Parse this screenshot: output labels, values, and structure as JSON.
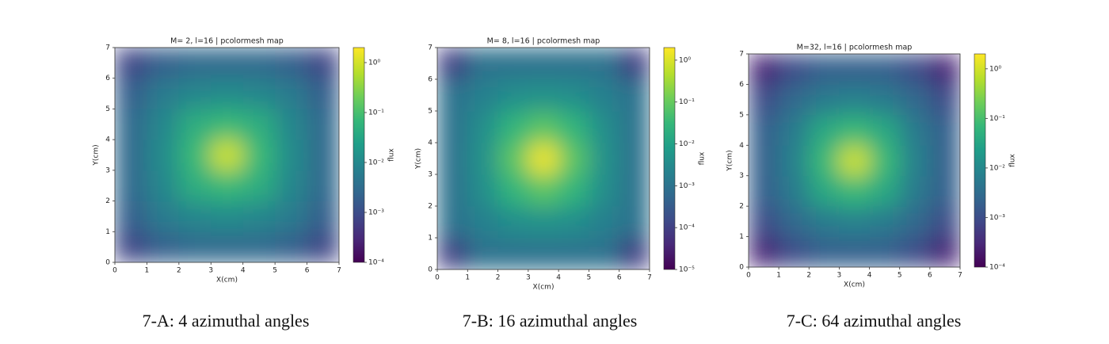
{
  "chart_data": [
    {
      "type": "heatmap",
      "title": "M= 2, l=16 | pcolormesh map",
      "xlabel": "X(cm)",
      "ylabel": "Y(cm)",
      "colorbar_label": "flux",
      "caption": "7-A: 4 azimuthal angles",
      "cmap": "viridis",
      "color_scale": "log",
      "xlim": [
        0,
        7
      ],
      "ylim": [
        0,
        7
      ],
      "xticks": [
        0,
        1,
        2,
        3,
        4,
        5,
        6,
        7
      ],
      "yticks": [
        0,
        1,
        2,
        3,
        4,
        5,
        6,
        7
      ],
      "clim": [
        0.0001,
        2
      ],
      "cticks": [
        {
          "value": 1,
          "label": "10⁰"
        },
        {
          "value": 0.1,
          "label": "10⁻¹"
        },
        {
          "value": 0.01,
          "label": "10⁻²"
        },
        {
          "value": 0.001,
          "label": "10⁻³"
        },
        {
          "value": 0.0001,
          "label": "10⁻⁴"
        }
      ],
      "z": [
        [
          0.0008,
          0.002,
          0.003,
          0.003,
          0.003,
          0.002,
          0.0008
        ],
        [
          0.002,
          0.006,
          0.01,
          0.012,
          0.01,
          0.006,
          0.002
        ],
        [
          0.003,
          0.01,
          0.05,
          0.08,
          0.05,
          0.01,
          0.003
        ],
        [
          0.003,
          0.012,
          0.08,
          1,
          0.08,
          0.012,
          0.003
        ],
        [
          0.003,
          0.01,
          0.05,
          0.08,
          0.05,
          0.01,
          0.003
        ],
        [
          0.002,
          0.006,
          0.01,
          0.012,
          0.01,
          0.006,
          0.002
        ],
        [
          0.0008,
          0.002,
          0.003,
          0.003,
          0.003,
          0.002,
          0.0008
        ]
      ]
    },
    {
      "type": "heatmap",
      "title": "M= 8, l=16 | pcolormesh map",
      "xlabel": "X(cm)",
      "ylabel": "Y(cm)",
      "colorbar_label": "flux",
      "caption": "7-B: 16 azimuthal angles",
      "cmap": "viridis",
      "color_scale": "log",
      "xlim": [
        0,
        7
      ],
      "ylim": [
        0,
        7
      ],
      "xticks": [
        0,
        1,
        2,
        3,
        4,
        5,
        6,
        7
      ],
      "yticks": [
        0,
        1,
        2,
        3,
        4,
        5,
        6,
        7
      ],
      "clim": [
        1e-05,
        2
      ],
      "cticks": [
        {
          "value": 1,
          "label": "10⁰"
        },
        {
          "value": 0.1,
          "label": "10⁻¹"
        },
        {
          "value": 0.01,
          "label": "10⁻²"
        },
        {
          "value": 0.001,
          "label": "10⁻³"
        },
        {
          "value": 0.0001,
          "label": "10⁻⁴"
        },
        {
          "value": 1e-05,
          "label": "10⁻⁵"
        }
      ],
      "z": [
        [
          0.0001,
          0.001,
          0.001,
          0.001,
          0.001,
          0.001,
          0.0001
        ],
        [
          0.001,
          0.002,
          0.004,
          0.005,
          0.004,
          0.002,
          0.001
        ],
        [
          0.001,
          0.004,
          0.03,
          0.08,
          0.03,
          0.004,
          0.001
        ],
        [
          0.001,
          0.005,
          0.08,
          1.5,
          0.08,
          0.005,
          0.001
        ],
        [
          0.001,
          0.004,
          0.03,
          0.08,
          0.03,
          0.004,
          0.001
        ],
        [
          0.001,
          0.002,
          0.004,
          0.005,
          0.004,
          0.002,
          0.001
        ],
        [
          0.0001,
          0.001,
          0.001,
          0.001,
          0.001,
          0.001,
          0.0001
        ]
      ]
    },
    {
      "type": "heatmap",
      "title": "M=32, l=16 | pcolormesh map",
      "xlabel": "X(cm)",
      "ylabel": "Y(cm)",
      "colorbar_label": "flux",
      "caption": "7-C: 64 azimuthal angles",
      "cmap": "viridis",
      "color_scale": "log",
      "xlim": [
        0,
        7
      ],
      "ylim": [
        0,
        7
      ],
      "xticks": [
        0,
        1,
        2,
        3,
        4,
        5,
        6,
        7
      ],
      "yticks": [
        0,
        1,
        2,
        3,
        4,
        5,
        6,
        7
      ],
      "clim": [
        0.0001,
        2
      ],
      "cticks": [
        {
          "value": 1,
          "label": "10⁰"
        },
        {
          "value": 0.1,
          "label": "10⁻¹"
        },
        {
          "value": 0.01,
          "label": "10⁻²"
        },
        {
          "value": 0.001,
          "label": "10⁻³"
        },
        {
          "value": 0.0001,
          "label": "10⁻⁴"
        }
      ],
      "z": [
        [
          0.0003,
          0.001,
          0.002,
          0.002,
          0.002,
          0.001,
          0.0003
        ],
        [
          0.001,
          0.003,
          0.006,
          0.008,
          0.006,
          0.003,
          0.001
        ],
        [
          0.002,
          0.006,
          0.04,
          0.08,
          0.04,
          0.006,
          0.002
        ],
        [
          0.002,
          0.008,
          0.08,
          1,
          0.08,
          0.008,
          0.002
        ],
        [
          0.002,
          0.006,
          0.04,
          0.08,
          0.04,
          0.006,
          0.002
        ],
        [
          0.001,
          0.003,
          0.006,
          0.008,
          0.006,
          0.003,
          0.001
        ],
        [
          0.0003,
          0.001,
          0.002,
          0.002,
          0.002,
          0.001,
          0.0003
        ]
      ]
    }
  ]
}
